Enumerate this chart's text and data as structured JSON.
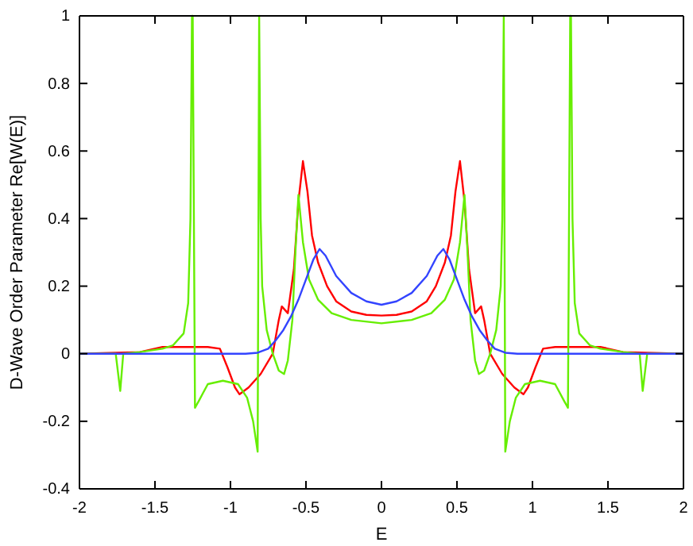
{
  "chart_data": {
    "type": "line",
    "xlabel": "E",
    "ylabel": "D-Wave Order Parameter Re[W(E)]",
    "xlim": [
      -2,
      2
    ],
    "ylim": [
      -0.4,
      1
    ],
    "xticks": [
      -2,
      -1.5,
      -1,
      -0.5,
      0,
      0.5,
      1,
      1.5,
      2
    ],
    "yticks": [
      -0.4,
      -0.2,
      0,
      0.2,
      0.4,
      0.6,
      0.8,
      1
    ],
    "grid": false,
    "line_style": "solid",
    "series": [
      {
        "color": "#ff0000",
        "x": [
          -2,
          -1.6,
          -1.45,
          -1.3,
          -1.15,
          -1.07,
          -1.02,
          -0.97,
          -0.94,
          -0.88,
          -0.8,
          -0.72,
          -0.68,
          -0.66,
          -0.64,
          -0.62,
          -0.58,
          -0.55,
          -0.52,
          -0.49,
          -0.46,
          -0.42,
          -0.36,
          -0.3,
          -0.2,
          -0.1,
          0,
          0.1,
          0.2,
          0.3,
          0.36,
          0.42,
          0.46,
          0.49,
          0.52,
          0.55,
          0.58,
          0.62,
          0.64,
          0.66,
          0.68,
          0.72,
          0.8,
          0.88,
          0.94,
          0.97,
          1.02,
          1.07,
          1.15,
          1.3,
          1.45,
          1.6,
          2
        ],
        "values": [
          0,
          0.005,
          0.02,
          0.02,
          0.02,
          0.015,
          -0.04,
          -0.1,
          -0.12,
          -0.1,
          -0.06,
          0,
          0.1,
          0.14,
          0.13,
          0.12,
          0.25,
          0.45,
          0.57,
          0.48,
          0.35,
          0.27,
          0.2,
          0.155,
          0.125,
          0.115,
          0.113,
          0.115,
          0.125,
          0.155,
          0.2,
          0.27,
          0.35,
          0.48,
          0.57,
          0.45,
          0.25,
          0.12,
          0.13,
          0.14,
          0.1,
          0,
          -0.06,
          -0.1,
          -0.12,
          -0.1,
          -0.04,
          0.015,
          0.02,
          0.02,
          0.02,
          0.005,
          0
        ]
      },
      {
        "color": "#66ee00",
        "x": [
          -2,
          -1.76,
          -1.73,
          -1.71,
          -1.6,
          -1.45,
          -1.38,
          -1.31,
          -1.28,
          -1.265,
          -1.255,
          -1.25,
          -1.235,
          -1.21,
          -1.15,
          -1.05,
          -0.95,
          -0.89,
          -0.85,
          -0.82,
          -0.81,
          -0.8,
          -0.79,
          -0.76,
          -0.72,
          -0.68,
          -0.645,
          -0.62,
          -0.59,
          -0.57,
          -0.55,
          -0.52,
          -0.48,
          -0.42,
          -0.33,
          -0.2,
          0,
          0.2,
          0.33,
          0.42,
          0.48,
          0.52,
          0.55,
          0.57,
          0.59,
          0.62,
          0.645,
          0.68,
          0.72,
          0.76,
          0.79,
          0.8,
          0.81,
          0.82,
          0.85,
          0.89,
          0.95,
          1.05,
          1.15,
          1.21,
          1.235,
          1.25,
          1.255,
          1.265,
          1.28,
          1.31,
          1.38,
          1.45,
          1.6,
          1.71,
          1.73,
          1.76,
          2
        ],
        "values": [
          0,
          0,
          -0.11,
          0,
          0.005,
          0.015,
          0.025,
          0.06,
          0.15,
          0.4,
          1,
          1,
          -0.16,
          -0.14,
          -0.09,
          -0.08,
          -0.09,
          -0.13,
          -0.2,
          -0.29,
          1,
          0.4,
          0.2,
          0.07,
          0,
          -0.05,
          -0.06,
          -0.02,
          0.1,
          0.3,
          0.47,
          0.33,
          0.22,
          0.16,
          0.12,
          0.1,
          0.09,
          0.1,
          0.12,
          0.16,
          0.22,
          0.33,
          0.47,
          0.3,
          0.1,
          -0.02,
          -0.06,
          -0.05,
          0,
          0.07,
          0.2,
          0.4,
          1,
          -0.29,
          -0.2,
          -0.13,
          -0.09,
          -0.08,
          -0.09,
          -0.14,
          -0.16,
          1,
          1,
          0.4,
          0.15,
          0.06,
          0.025,
          0.015,
          0.005,
          0,
          -0.11,
          0,
          0
        ]
      },
      {
        "color": "#3344ff",
        "x": [
          -2,
          -1,
          -0.9,
          -0.82,
          -0.75,
          -0.7,
          -0.65,
          -0.6,
          -0.55,
          -0.5,
          -0.45,
          -0.41,
          -0.37,
          -0.3,
          -0.2,
          -0.1,
          0,
          0.1,
          0.2,
          0.3,
          0.37,
          0.41,
          0.45,
          0.5,
          0.55,
          0.6,
          0.65,
          0.7,
          0.75,
          0.82,
          0.9,
          1,
          2
        ],
        "values": [
          0,
          0,
          0,
          0.003,
          0.015,
          0.04,
          0.07,
          0.11,
          0.16,
          0.22,
          0.28,
          0.31,
          0.29,
          0.23,
          0.18,
          0.155,
          0.145,
          0.155,
          0.18,
          0.23,
          0.29,
          0.31,
          0.28,
          0.22,
          0.16,
          0.11,
          0.07,
          0.04,
          0.015,
          0.003,
          0,
          0,
          0
        ]
      }
    ]
  }
}
